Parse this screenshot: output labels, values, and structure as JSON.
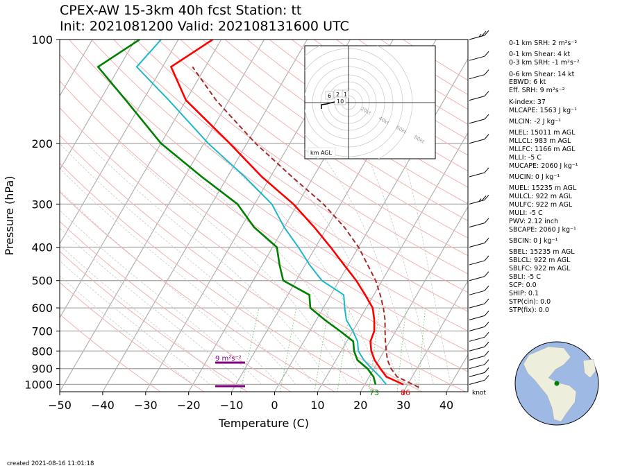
{
  "title_line1": "CPEX-AW 15-3km  40h fcst  Station: tt",
  "title_line2": "Init: 2021081200  Valid: 202108131600 UTC",
  "created": "created 2021-08-16 11:01:18",
  "indices": [
    "0-1 km SRH: 2 m²s⁻²",
    "0-1 km Shear: 4 kt",
    "0-3 km SRH: -1 m²s⁻²",
    "0-6 km Shear: 14 kt",
    "EBWD: 6 kt",
    "Eff. SRH: 9 m²s⁻²",
    "K-index: 37",
    "MLCAPE: 1563 J kg⁻¹",
    "MLCIN: -2 J kg⁻¹",
    "MLEL: 15011 m AGL",
    "MLLCL: 983 m AGL",
    "MLLFC: 1166 m AGL",
    "MLLI: -5 C",
    "MUCAPE: 2060 J kg⁻¹",
    "MUCIN: 0 J kg⁻¹",
    "MUEL: 15235 m AGL",
    "MULCL: 922 m AGL",
    "MULFC: 922 m AGL",
    "MULI: -5 C",
    "PWV: 2.12 inch",
    "SBCAPE: 2060 J kg⁻¹",
    "SBCIN: 0 J kg⁻¹",
    "SBEL: 15235 m AGL",
    "SBLCL: 922 m AGL",
    "SBLFC: 922 m AGL",
    "SBLI: -5 C",
    "SCP: 0.0",
    "SHIP: 0.1",
    "STP(cin): 0.0",
    "STP(fix): 0.0"
  ],
  "chart_data": {
    "type": "skew-t",
    "xlabel": "Temperature (C)",
    "ylabel": "Pressure (hPa)",
    "xlim": [
      -50,
      45
    ],
    "ylim": [
      1050,
      100
    ],
    "x_ticks": [
      "−50",
      "−40",
      "−30",
      "−20",
      "−10",
      "0",
      "10",
      "20",
      "30",
      "40"
    ],
    "y_ticks": [
      "100",
      "200",
      "300",
      "400",
      "500",
      "600",
      "700",
      "800",
      "900",
      "1000"
    ],
    "surface_temperature_label": "86",
    "surface_dewpoint_label": "73",
    "srh_label": "9 m²s⁻²",
    "wind_unit_label": "knot",
    "hodograph": {
      "ring_labels": [
        "20kt",
        "40kt",
        "60kt",
        "80kt"
      ],
      "height_labels": [
        "6",
        "2",
        "1",
        "10"
      ],
      "legend": "km AGL"
    },
    "series": [
      {
        "key": "temperature",
        "color": "#ff0000",
        "points": [
          [
            1000,
            29
          ],
          [
            950,
            24
          ],
          [
            900,
            21.5
          ],
          [
            850,
            19
          ],
          [
            800,
            17
          ],
          [
            750,
            15.5
          ],
          [
            700,
            15
          ],
          [
            650,
            13.5
          ],
          [
            600,
            11.5
          ],
          [
            550,
            8
          ],
          [
            500,
            4
          ],
          [
            450,
            -1
          ],
          [
            400,
            -6.5
          ],
          [
            350,
            -13
          ],
          [
            300,
            -21
          ],
          [
            250,
            -32
          ],
          [
            200,
            -44
          ],
          [
            150,
            -60
          ],
          [
            120,
            -68
          ],
          [
            100,
            -62
          ]
        ]
      },
      {
        "key": "dewpoint",
        "color": "#008000",
        "points": [
          [
            1000,
            22.5
          ],
          [
            950,
            21
          ],
          [
            900,
            18.5
          ],
          [
            850,
            15
          ],
          [
            800,
            13
          ],
          [
            750,
            11.5
          ],
          [
            700,
            7
          ],
          [
            650,
            2
          ],
          [
            600,
            -3
          ],
          [
            550,
            -5
          ],
          [
            500,
            -13
          ],
          [
            450,
            -16
          ],
          [
            400,
            -19
          ],
          [
            350,
            -27
          ],
          [
            300,
            -34
          ],
          [
            250,
            -46
          ],
          [
            200,
            -60
          ],
          [
            150,
            -74
          ],
          [
            120,
            -85
          ],
          [
            100,
            -79
          ]
        ]
      },
      {
        "key": "parcel_dewpoint",
        "color": "#1ab8c8",
        "points": [
          [
            1000,
            25
          ],
          [
            950,
            22.5
          ],
          [
            900,
            19.5
          ],
          [
            850,
            16.5
          ],
          [
            800,
            14
          ],
          [
            750,
            12.5
          ],
          [
            700,
            10
          ],
          [
            650,
            7
          ],
          [
            600,
            5
          ],
          [
            550,
            3
          ],
          [
            500,
            -4
          ],
          [
            450,
            -9
          ],
          [
            400,
            -14
          ],
          [
            350,
            -20
          ],
          [
            300,
            -26
          ],
          [
            250,
            -36
          ],
          [
            200,
            -49
          ],
          [
            150,
            -64
          ],
          [
            120,
            -76
          ],
          [
            100,
            -74
          ]
        ]
      },
      {
        "key": "parcel_path",
        "color": "#a52a2a",
        "points": [
          [
            1020,
            33
          ],
          [
            950,
            26.5
          ],
          [
            900,
            24
          ],
          [
            850,
            22
          ],
          [
            800,
            20.5
          ],
          [
            750,
            19
          ],
          [
            700,
            17.5
          ],
          [
            650,
            16
          ],
          [
            600,
            14
          ],
          [
            550,
            11.5
          ],
          [
            500,
            8.5
          ],
          [
            450,
            4.5
          ],
          [
            400,
            0
          ],
          [
            350,
            -6
          ],
          [
            300,
            -14
          ],
          [
            250,
            -25
          ],
          [
            200,
            -38
          ],
          [
            150,
            -53
          ],
          [
            120,
            -63
          ]
        ]
      }
    ],
    "wind_barbs_knots": [
      [
        1000,
        10
      ],
      [
        950,
        10
      ],
      [
        900,
        10
      ],
      [
        850,
        10
      ],
      [
        800,
        10
      ],
      [
        750,
        10
      ],
      [
        700,
        10
      ],
      [
        650,
        10
      ],
      [
        600,
        10
      ],
      [
        550,
        10
      ],
      [
        500,
        10
      ],
      [
        450,
        10
      ],
      [
        400,
        10
      ],
      [
        350,
        10
      ],
      [
        300,
        15
      ],
      [
        250,
        10
      ],
      [
        200,
        10
      ],
      [
        175,
        10
      ],
      [
        150,
        10
      ],
      [
        130,
        10
      ],
      [
        115,
        10
      ],
      [
        100,
        15
      ]
    ]
  }
}
